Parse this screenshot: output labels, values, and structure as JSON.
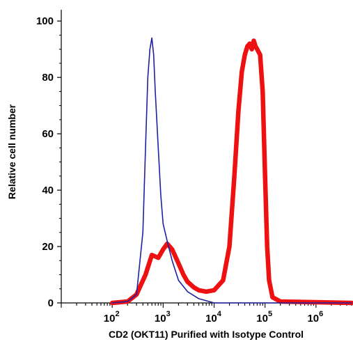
{
  "chart_data": {
    "type": "line",
    "title": "",
    "xlabel": "CD2 (OKT11) Purified with Isotype Control",
    "ylabel": "Relative cell number",
    "x_scale": "log10",
    "xlim": [
      10,
      5000000
    ],
    "ylim": [
      0,
      104
    ],
    "x_ticks": [
      {
        "value": 100,
        "base": "10",
        "exp": "2"
      },
      {
        "value": 1000,
        "base": "10",
        "exp": "3"
      },
      {
        "value": 10000,
        "base": "10",
        "exp": "4"
      },
      {
        "value": 100000,
        "base": "10",
        "exp": "5"
      },
      {
        "value": 1000000,
        "base": "10",
        "exp": "6"
      }
    ],
    "y_ticks": [
      0,
      20,
      40,
      60,
      80,
      100
    ],
    "grid": false,
    "legend": "none",
    "series": [
      {
        "color": "#2020a0",
        "role": "isotype control",
        "points": [
          [
            100,
            0
          ],
          [
            200,
            0.5
          ],
          [
            300,
            3
          ],
          [
            400,
            25
          ],
          [
            450,
            55
          ],
          [
            500,
            80
          ],
          [
            550,
            90
          ],
          [
            600,
            94
          ],
          [
            650,
            88
          ],
          [
            700,
            75
          ],
          [
            800,
            55
          ],
          [
            900,
            38
          ],
          [
            1000,
            28
          ],
          [
            1200,
            22
          ],
          [
            1500,
            15
          ],
          [
            2000,
            8
          ],
          [
            3000,
            4
          ],
          [
            5000,
            1.5
          ],
          [
            8000,
            0.5
          ],
          [
            10000,
            0
          ],
          [
            5000000,
            0
          ]
        ]
      },
      {
        "color": "#ee1111",
        "role": "CD2 (OKT11)",
        "points": [
          [
            100,
            0
          ],
          [
            200,
            0.5
          ],
          [
            300,
            3
          ],
          [
            450,
            10
          ],
          [
            600,
            17
          ],
          [
            800,
            16
          ],
          [
            1000,
            19
          ],
          [
            1200,
            21
          ],
          [
            1500,
            19
          ],
          [
            2000,
            14
          ],
          [
            2500,
            10
          ],
          [
            3000,
            7.5
          ],
          [
            4000,
            5.5
          ],
          [
            5000,
            4.5
          ],
          [
            7000,
            4
          ],
          [
            10000,
            4.5
          ],
          [
            15000,
            8
          ],
          [
            20000,
            20
          ],
          [
            25000,
            45
          ],
          [
            30000,
            68
          ],
          [
            35000,
            82
          ],
          [
            40000,
            88
          ],
          [
            45000,
            91
          ],
          [
            50000,
            92
          ],
          [
            55000,
            90
          ],
          [
            60000,
            93
          ],
          [
            65000,
            91
          ],
          [
            70000,
            90
          ],
          [
            80000,
            88
          ],
          [
            90000,
            75
          ],
          [
            100000,
            45
          ],
          [
            110000,
            20
          ],
          [
            120000,
            8
          ],
          [
            140000,
            2
          ],
          [
            200000,
            0.5
          ],
          [
            5000000,
            0
          ]
        ]
      }
    ]
  }
}
